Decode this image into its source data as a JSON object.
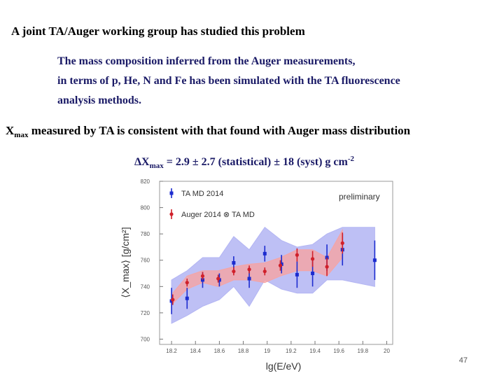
{
  "slide": {
    "title": "A joint TA/Auger working group has studied this problem",
    "paragraph": [
      "The mass composition inferred from the Auger measurements,",
      "in terms of p, He, N and Fe has been simulated with the TA fluorescence",
      "analysis methods."
    ],
    "statement": {
      "x": "X",
      "sub": "max",
      "rest": " measured by TA is consistent with that found with Auger mass distribution"
    },
    "result": {
      "delta": "ΔX",
      "sub": "max",
      "rest": " = 2.9 ± 2.7 (statistical) ± 18 (syst) g cm",
      "sup": "-2"
    },
    "page_number": "47"
  },
  "chart_data": {
    "type": "scatter",
    "xlabel": "lg(E/eV)",
    "ylabel": "⟨X_max⟩ [g/cm²]",
    "annotation": "preliminary",
    "xlim": [
      18.1,
      20.05
    ],
    "ylim": [
      696,
      820
    ],
    "xticks": [
      18.2,
      18.4,
      18.6,
      18.8,
      19,
      19.2,
      19.4,
      19.6,
      19.8,
      20
    ],
    "yticks": [
      700,
      720,
      740,
      760,
      780,
      800,
      820
    ],
    "series": [
      {
        "name": "TA MD 2014",
        "color": "#1c2ccf",
        "marker": "square",
        "band_color": "#b3b5f3",
        "x": [
          18.2,
          18.33,
          18.46,
          18.6,
          18.72,
          18.85,
          18.98,
          19.12,
          19.25,
          19.38,
          19.5,
          19.63,
          19.9
        ],
        "values": [
          729,
          731,
          745,
          745,
          758,
          746,
          765,
          757,
          749,
          750,
          762,
          768,
          760
        ],
        "errors": [
          10,
          8,
          6,
          5,
          5,
          7,
          6,
          7,
          10,
          10,
          10,
          12,
          15
        ],
        "band_lower": [
          712,
          718,
          725,
          730,
          740,
          725,
          745,
          738,
          735,
          735,
          745,
          745,
          740
        ],
        "band_upper": [
          745,
          752,
          762,
          762,
          778,
          768,
          785,
          775,
          770,
          772,
          780,
          785,
          785
        ]
      },
      {
        "name": "Auger 2014 ⊗ TA MD",
        "color": "#d0202a",
        "marker": "circle",
        "band_color": "#f6a3a3",
        "x": [
          18.21,
          18.33,
          18.46,
          18.59,
          18.72,
          18.85,
          18.98,
          19.11,
          19.25,
          19.38,
          19.5,
          19.63
        ],
        "values": [
          730,
          743,
          748,
          746,
          751.5,
          753,
          751.5,
          756,
          764,
          761,
          755,
          773
        ],
        "errors": [
          4,
          3,
          3,
          3,
          3,
          3,
          3,
          4,
          5,
          6,
          7,
          8
        ],
        "band_lower": [
          727,
          738,
          743,
          740,
          745,
          745,
          743,
          748,
          752,
          752,
          748,
          762
        ],
        "band_upper": [
          735,
          748,
          752,
          752,
          755,
          757,
          758,
          762,
          768,
          768,
          762,
          783
        ]
      }
    ]
  }
}
